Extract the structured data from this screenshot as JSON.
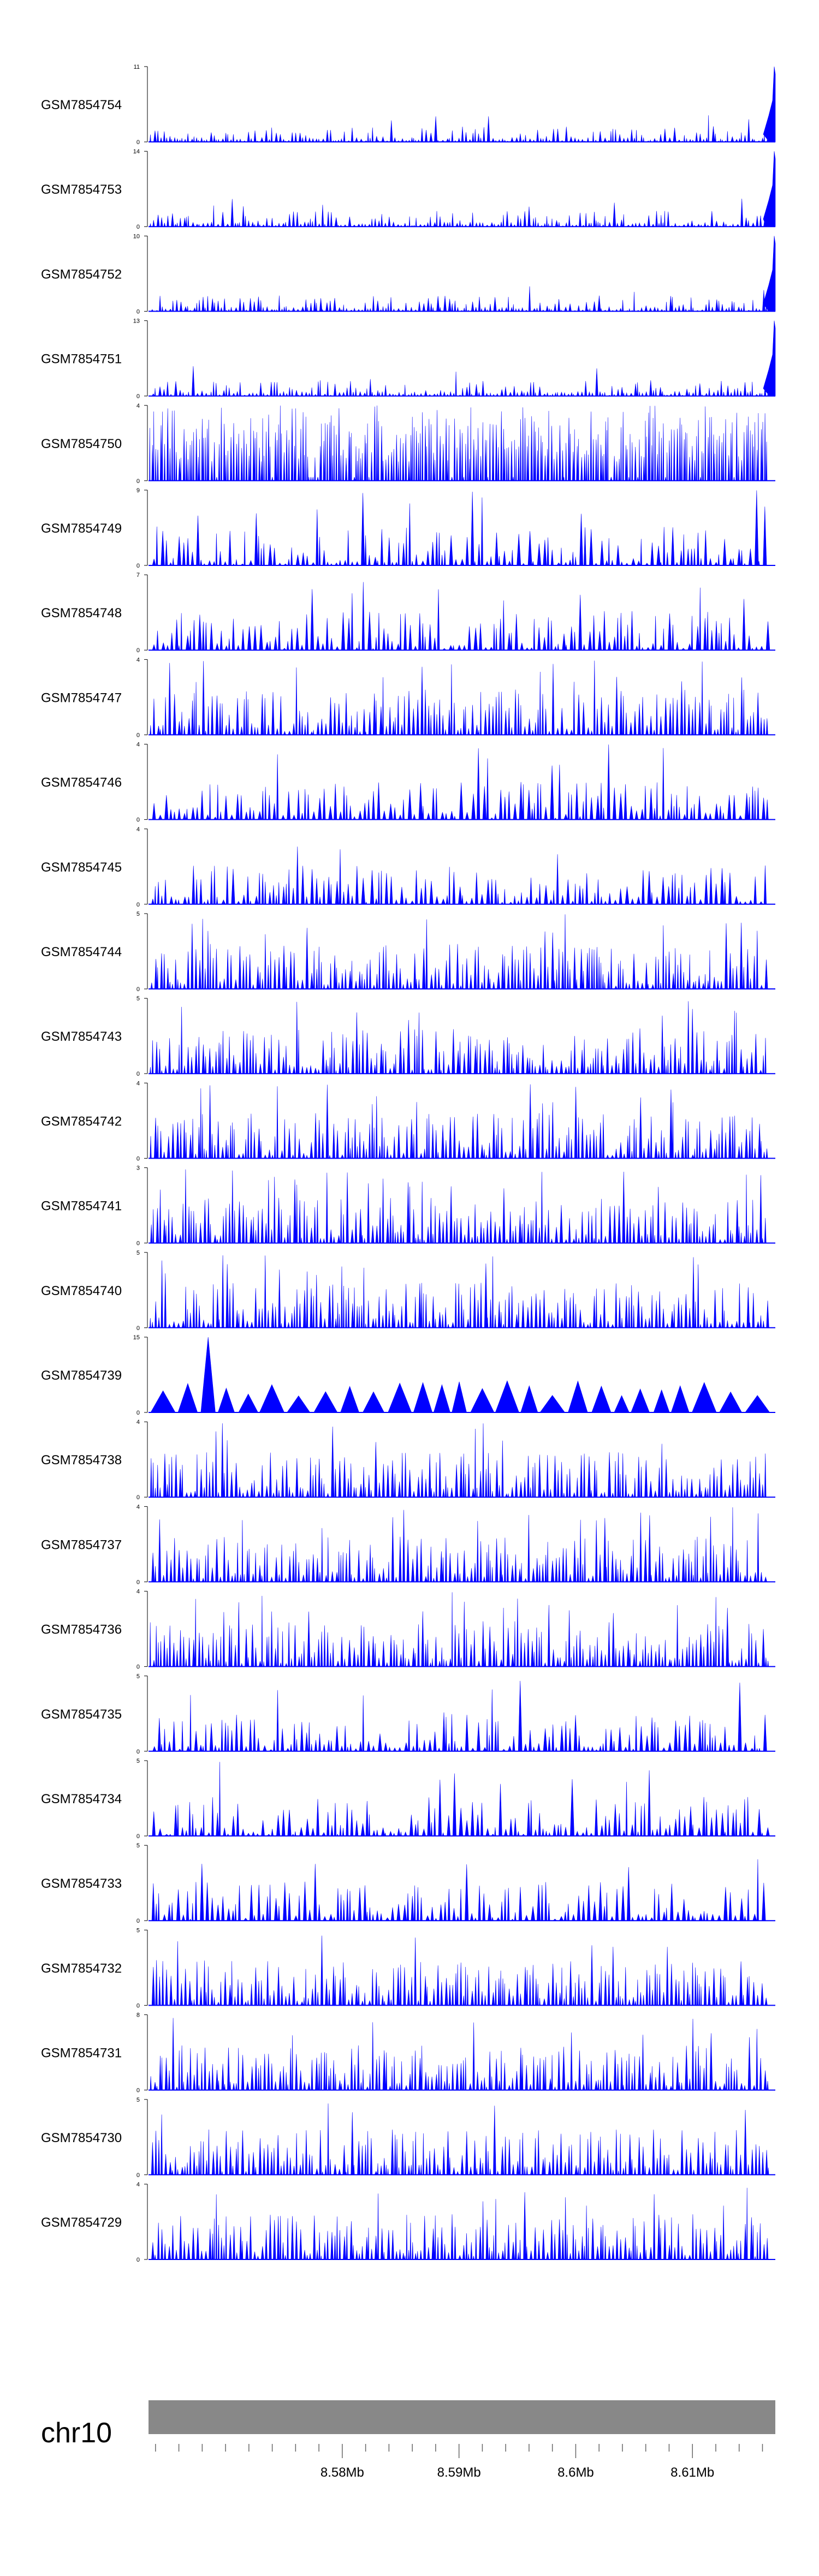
{
  "chart_data": {
    "type": "area",
    "chromosome": "chr10",
    "xlim": [
      8.5634,
      8.6171
    ],
    "x_ticks": [
      {
        "value": 8.58,
        "label": "8.58Mb"
      },
      {
        "value": 8.59,
        "label": "8.59Mb"
      },
      {
        "value": 8.6,
        "label": "8.6Mb"
      },
      {
        "value": 8.61,
        "label": "8.61Mb"
      }
    ],
    "colors": {
      "signal": "#0000ff",
      "ideogram": "#888888",
      "axis": "#000000"
    },
    "tracks": [
      {
        "name": "GSM7854754",
        "ymax_label": "11",
        "ymin_label": "0",
        "ymax": 11,
        "style": "peak_end",
        "seed": 754
      },
      {
        "name": "GSM7854753",
        "ymax_label": "14",
        "ymin_label": "0",
        "ymax": 14,
        "style": "peak_end",
        "seed": 753
      },
      {
        "name": "GSM7854752",
        "ymax_label": "10",
        "ymin_label": "0",
        "ymax": 10,
        "style": "peak_end",
        "seed": 752
      },
      {
        "name": "GSM7854751",
        "ymax_label": "13",
        "ymin_label": "0",
        "ymax": 13,
        "style": "peak_end",
        "seed": 751
      },
      {
        "name": "GSM7854750",
        "ymax_label": "4",
        "ymin_label": "0",
        "ymax": 4,
        "style": "dense",
        "seed": 750
      },
      {
        "name": "GSM7854749",
        "ymax_label": "9",
        "ymin_label": "0",
        "ymax": 9,
        "style": "sparse",
        "seed": 749
      },
      {
        "name": "GSM7854748",
        "ymax_label": "7",
        "ymin_label": "0",
        "ymax": 7,
        "style": "sparse",
        "seed": 748
      },
      {
        "name": "GSM7854747",
        "ymax_label": "4",
        "ymin_label": "0",
        "ymax": 4,
        "style": "medium",
        "seed": 747
      },
      {
        "name": "GSM7854746",
        "ymax_label": "4",
        "ymin_label": "0",
        "ymax": 4,
        "style": "sparse",
        "seed": 746
      },
      {
        "name": "GSM7854745",
        "ymax_label": "4",
        "ymin_label": "0",
        "ymax": 4,
        "style": "sparse",
        "seed": 745
      },
      {
        "name": "GSM7854744",
        "ymax_label": "5",
        "ymin_label": "0",
        "ymax": 5,
        "style": "medium",
        "seed": 744
      },
      {
        "name": "GSM7854743",
        "ymax_label": "5",
        "ymin_label": "0",
        "ymax": 5,
        "style": "medium",
        "seed": 743
      },
      {
        "name": "GSM7854742",
        "ymax_label": "4",
        "ymin_label": "0",
        "ymax": 4,
        "style": "medium",
        "seed": 742
      },
      {
        "name": "GSM7854741",
        "ymax_label": "3",
        "ymin_label": "0",
        "ymax": 3,
        "style": "medium",
        "seed": 741
      },
      {
        "name": "GSM7854740",
        "ymax_label": "5",
        "ymin_label": "0",
        "ymax": 5,
        "style": "medium",
        "seed": 740
      },
      {
        "name": "GSM7854739",
        "ymax_label": "15",
        "ymin_label": "0",
        "ymax": 15,
        "style": "triangles",
        "seed": 739
      },
      {
        "name": "GSM7854738",
        "ymax_label": "4",
        "ymin_label": "0",
        "ymax": 4,
        "style": "medium",
        "seed": 738
      },
      {
        "name": "GSM7854737",
        "ymax_label": "4",
        "ymin_label": "0",
        "ymax": 4,
        "style": "medium",
        "seed": 737
      },
      {
        "name": "GSM7854736",
        "ymax_label": "4",
        "ymin_label": "0",
        "ymax": 4,
        "style": "medium",
        "seed": 736
      },
      {
        "name": "GSM7854735",
        "ymax_label": "5",
        "ymin_label": "0",
        "ymax": 5,
        "style": "sparse",
        "seed": 735
      },
      {
        "name": "GSM7854734",
        "ymax_label": "5",
        "ymin_label": "0",
        "ymax": 5,
        "style": "sparse",
        "seed": 734
      },
      {
        "name": "GSM7854733",
        "ymax_label": "5",
        "ymin_label": "0",
        "ymax": 5,
        "style": "sparse",
        "seed": 733
      },
      {
        "name": "GSM7854732",
        "ymax_label": "5",
        "ymin_label": "0",
        "ymax": 5,
        "style": "medium",
        "seed": 732
      },
      {
        "name": "GSM7854731",
        "ymax_label": "8",
        "ymin_label": "0",
        "ymax": 8,
        "style": "medium",
        "seed": 731
      },
      {
        "name": "GSM7854730",
        "ymax_label": "5",
        "ymin_label": "0",
        "ymax": 5,
        "style": "medium",
        "seed": 730
      },
      {
        "name": "GSM7854729",
        "ymax_label": "4",
        "ymin_label": "0",
        "ymax": 4,
        "style": "medium",
        "seed": 729
      }
    ]
  }
}
